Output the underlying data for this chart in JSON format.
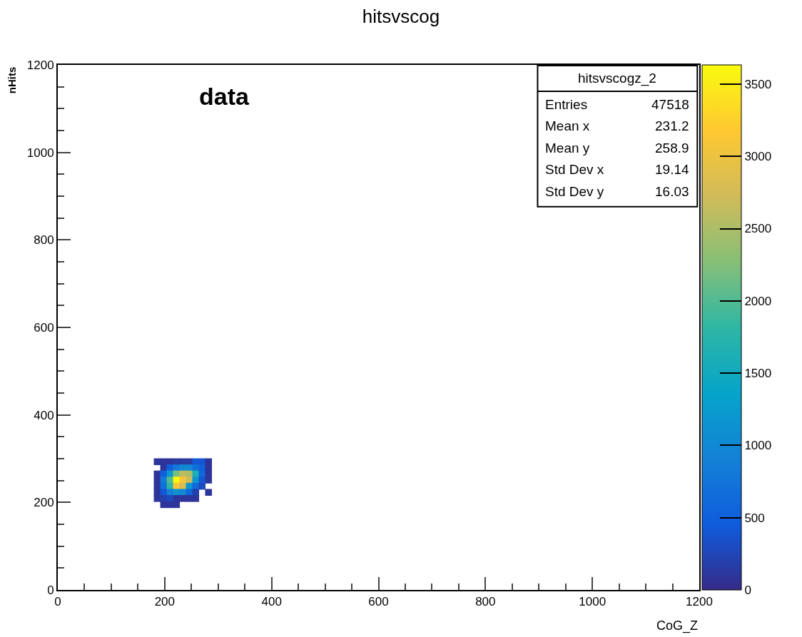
{
  "chart_data": {
    "type": "scatter",
    "title": "hitsvscog",
    "xlabel": "CoG_Z",
    "ylabel": "nHits",
    "marker": "square",
    "annotations": [
      "data",
      "hitsvscogz_2",
      "Entries",
      "47518",
      "Mean x",
      "231.2",
      "Mean y",
      "258.9",
      "Std Dev x",
      "19.14",
      "Std Dev y",
      "16.03"
    ],
    "x": [
      186,
      198,
      210,
      222,
      234,
      246,
      258,
      270,
      282,
      198,
      210,
      222,
      234,
      246,
      258,
      270,
      282,
      186,
      198,
      210,
      222,
      234,
      246,
      258,
      270,
      282,
      186,
      198,
      210,
      222,
      234,
      246,
      258,
      270,
      282,
      186,
      198,
      210,
      222,
      234,
      246,
      258,
      270,
      186,
      198,
      210,
      222,
      234,
      246,
      258,
      282,
      186,
      198,
      210,
      222,
      234,
      246,
      258,
      198,
      210,
      222
    ],
    "values": [
      293,
      293,
      293,
      293,
      293,
      293,
      293,
      293,
      293,
      279,
      279,
      279,
      279,
      279,
      279,
      279,
      279,
      265,
      265,
      265,
      265,
      265,
      265,
      265,
      265,
      265,
      251,
      251,
      251,
      251,
      251,
      251,
      251,
      251,
      251,
      237,
      237,
      237,
      237,
      237,
      237,
      237,
      237,
      223,
      223,
      223,
      223,
      223,
      223,
      223,
      223,
      209,
      209,
      209,
      209,
      209,
      209,
      209,
      195,
      195,
      195
    ],
    "cvalues": [
      100,
      100,
      100,
      150,
      150,
      150,
      400,
      400,
      100,
      100,
      500,
      800,
      1000,
      1000,
      700,
      500,
      100,
      100,
      500,
      1200,
      2200,
      2600,
      2500,
      1600,
      600,
      100,
      100,
      800,
      2000,
      3600,
      3100,
      2700,
      1200,
      400,
      100,
      100,
      700,
      1800,
      3100,
      2800,
      1200,
      600,
      300,
      100,
      400,
      900,
      1100,
      1000,
      600,
      200,
      100,
      100,
      200,
      300,
      100,
      100,
      100,
      100,
      100,
      100,
      100
    ],
    "xlim": [
      0,
      1200
    ],
    "xticks": [
      0,
      200,
      400,
      600,
      800,
      1000,
      1200
    ],
    "ylim": [
      0,
      1200
    ],
    "yticks": [
      0,
      200,
      400,
      600,
      800,
      1000,
      1200
    ],
    "clim": [
      0,
      3633
    ],
    "cticks": [
      0,
      500,
      1000,
      1500,
      2000,
      2500,
      3000,
      3500
    ]
  }
}
